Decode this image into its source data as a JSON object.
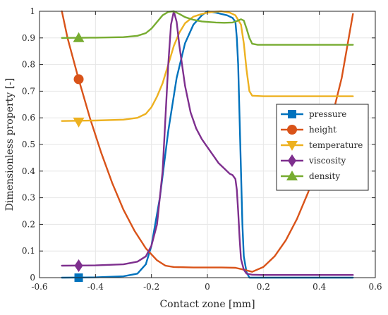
{
  "chart_data": {
    "type": "line",
    "xlabel": "Contact zone [mm]",
    "ylabel": "Dimensionless property [-]",
    "xlim": [
      -0.6,
      0.6
    ],
    "ylim": [
      0,
      1
    ],
    "x_ticks": [
      "-0.6",
      "-0.4",
      "-0.2",
      "0",
      "0.2",
      "0.4",
      "0.6"
    ],
    "y_ticks": [
      "0",
      "0.1",
      "0.2",
      "0.3",
      "0.4",
      "0.5",
      "0.6",
      "0.7",
      "0.8",
      "0.9",
      "1"
    ],
    "grid": true,
    "legend_position": "right",
    "series": [
      {
        "name": "pressure",
        "color": "#0072BD",
        "marker": "square",
        "marker_at": [
          -0.46,
          0.0
        ],
        "points": [
          [
            -0.52,
            0.0
          ],
          [
            -0.4,
            0.001
          ],
          [
            -0.3,
            0.005
          ],
          [
            -0.25,
            0.015
          ],
          [
            -0.22,
            0.05
          ],
          [
            -0.2,
            0.12
          ],
          [
            -0.17,
            0.3
          ],
          [
            -0.14,
            0.55
          ],
          [
            -0.11,
            0.75
          ],
          [
            -0.08,
            0.88
          ],
          [
            -0.05,
            0.95
          ],
          [
            -0.02,
            0.985
          ],
          [
            0.0,
            1.0
          ],
          [
            0.03,
            0.995
          ],
          [
            0.05,
            0.99
          ],
          [
            0.07,
            0.985
          ],
          [
            0.09,
            0.975
          ],
          [
            0.1,
            0.96
          ],
          [
            0.105,
            0.9
          ],
          [
            0.11,
            0.8
          ],
          [
            0.115,
            0.6
          ],
          [
            0.12,
            0.4
          ],
          [
            0.125,
            0.2
          ],
          [
            0.13,
            0.08
          ],
          [
            0.14,
            0.02
          ],
          [
            0.15,
            0.0
          ],
          [
            0.2,
            0.0
          ],
          [
            0.52,
            0.0
          ]
        ]
      },
      {
        "name": "height",
        "color": "#D95319",
        "marker": "circle",
        "marker_at": [
          -0.46,
          0.745
        ],
        "points": [
          [
            -0.52,
            1.0
          ],
          [
            -0.5,
            0.9
          ],
          [
            -0.46,
            0.745
          ],
          [
            -0.42,
            0.6
          ],
          [
            -0.38,
            0.47
          ],
          [
            -0.34,
            0.355
          ],
          [
            -0.3,
            0.255
          ],
          [
            -0.26,
            0.175
          ],
          [
            -0.22,
            0.11
          ],
          [
            -0.18,
            0.065
          ],
          [
            -0.15,
            0.045
          ],
          [
            -0.12,
            0.04
          ],
          [
            -0.05,
            0.038
          ],
          [
            0.0,
            0.038
          ],
          [
            0.05,
            0.038
          ],
          [
            0.1,
            0.037
          ],
          [
            0.13,
            0.03
          ],
          [
            0.16,
            0.022
          ],
          [
            0.2,
            0.04
          ],
          [
            0.24,
            0.08
          ],
          [
            0.28,
            0.14
          ],
          [
            0.32,
            0.22
          ],
          [
            0.36,
            0.32
          ],
          [
            0.4,
            0.44
          ],
          [
            0.44,
            0.58
          ],
          [
            0.48,
            0.75
          ],
          [
            0.52,
            0.99
          ]
        ]
      },
      {
        "name": "temperature",
        "color": "#EDB120",
        "marker": "triangle-down",
        "marker_at": [
          -0.46,
          0.585
        ],
        "points": [
          [
            -0.52,
            0.588
          ],
          [
            -0.4,
            0.59
          ],
          [
            -0.3,
            0.593
          ],
          [
            -0.25,
            0.6
          ],
          [
            -0.22,
            0.615
          ],
          [
            -0.2,
            0.64
          ],
          [
            -0.18,
            0.68
          ],
          [
            -0.16,
            0.73
          ],
          [
            -0.14,
            0.8
          ],
          [
            -0.12,
            0.87
          ],
          [
            -0.1,
            0.92
          ],
          [
            -0.08,
            0.955
          ],
          [
            -0.05,
            0.98
          ],
          [
            -0.02,
            0.99
          ],
          [
            0.0,
            0.995
          ],
          [
            0.02,
            0.998
          ],
          [
            0.05,
            1.0
          ],
          [
            0.08,
            0.995
          ],
          [
            0.1,
            0.985
          ],
          [
            0.12,
            0.95
          ],
          [
            0.13,
            0.88
          ],
          [
            0.14,
            0.78
          ],
          [
            0.15,
            0.7
          ],
          [
            0.16,
            0.683
          ],
          [
            0.2,
            0.681
          ],
          [
            0.52,
            0.681
          ]
        ]
      },
      {
        "name": "viscosity",
        "color": "#7E2F8E",
        "marker": "diamond",
        "marker_at": [
          -0.46,
          0.045
        ],
        "points": [
          [
            -0.52,
            0.045
          ],
          [
            -0.4,
            0.046
          ],
          [
            -0.3,
            0.05
          ],
          [
            -0.25,
            0.06
          ],
          [
            -0.22,
            0.08
          ],
          [
            -0.2,
            0.12
          ],
          [
            -0.18,
            0.2
          ],
          [
            -0.16,
            0.4
          ],
          [
            -0.15,
            0.6
          ],
          [
            -0.14,
            0.8
          ],
          [
            -0.13,
            0.95
          ],
          [
            -0.12,
            1.0
          ],
          [
            -0.11,
            0.96
          ],
          [
            -0.1,
            0.87
          ],
          [
            -0.08,
            0.72
          ],
          [
            -0.06,
            0.62
          ],
          [
            -0.04,
            0.56
          ],
          [
            -0.02,
            0.52
          ],
          [
            0.0,
            0.49
          ],
          [
            0.02,
            0.46
          ],
          [
            0.04,
            0.43
          ],
          [
            0.06,
            0.41
          ],
          [
            0.08,
            0.39
          ],
          [
            0.09,
            0.385
          ],
          [
            0.1,
            0.37
          ],
          [
            0.105,
            0.33
          ],
          [
            0.11,
            0.25
          ],
          [
            0.115,
            0.15
          ],
          [
            0.12,
            0.07
          ],
          [
            0.13,
            0.03
          ],
          [
            0.14,
            0.015
          ],
          [
            0.16,
            0.011
          ],
          [
            0.2,
            0.01
          ],
          [
            0.52,
            0.01
          ]
        ]
      },
      {
        "name": "density",
        "color": "#77AC30",
        "marker": "triangle-up",
        "marker_at": [
          -0.46,
          0.9
        ],
        "points": [
          [
            -0.52,
            0.9
          ],
          [
            -0.4,
            0.901
          ],
          [
            -0.3,
            0.903
          ],
          [
            -0.25,
            0.908
          ],
          [
            -0.22,
            0.918
          ],
          [
            -0.2,
            0.935
          ],
          [
            -0.18,
            0.96
          ],
          [
            -0.16,
            0.985
          ],
          [
            -0.14,
            0.998
          ],
          [
            -0.12,
            1.0
          ],
          [
            -0.1,
            0.99
          ],
          [
            -0.08,
            0.978
          ],
          [
            -0.05,
            0.968
          ],
          [
            -0.02,
            0.962
          ],
          [
            0.0,
            0.96
          ],
          [
            0.03,
            0.958
          ],
          [
            0.06,
            0.957
          ],
          [
            0.09,
            0.958
          ],
          [
            0.11,
            0.965
          ],
          [
            0.12,
            0.97
          ],
          [
            0.13,
            0.965
          ],
          [
            0.14,
            0.935
          ],
          [
            0.15,
            0.9
          ],
          [
            0.16,
            0.878
          ],
          [
            0.18,
            0.874
          ],
          [
            0.52,
            0.874
          ]
        ]
      }
    ]
  }
}
